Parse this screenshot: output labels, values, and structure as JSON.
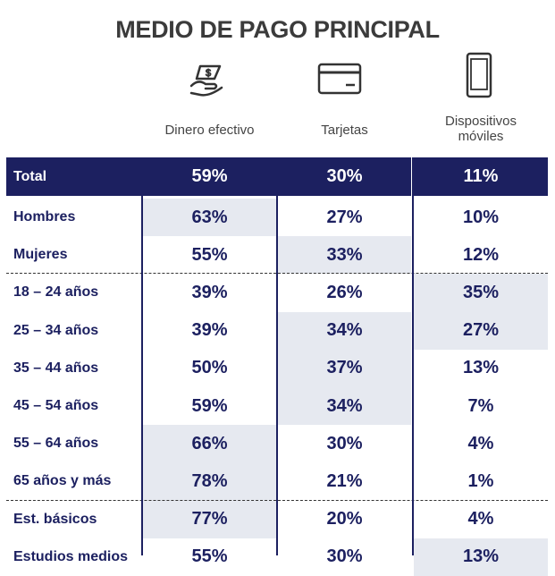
{
  "title": "MEDIO DE PAGO PRINCIPAL",
  "columns": [
    "Dinero efectivo",
    "Tarjetas",
    "Dispositivos móviles"
  ],
  "total": {
    "label": "Total",
    "values": [
      "59%",
      "30%",
      "11%"
    ]
  },
  "groups": [
    {
      "rows": [
        {
          "label": "Hombres",
          "values": [
            "63%",
            "27%",
            "10%"
          ],
          "highlight": [
            true,
            false,
            false
          ]
        },
        {
          "label": "Mujeres",
          "values": [
            "55%",
            "33%",
            "12%"
          ],
          "highlight": [
            false,
            true,
            false
          ]
        }
      ]
    },
    {
      "rows": [
        {
          "label": "18 – 24 años",
          "values": [
            "39%",
            "26%",
            "35%"
          ],
          "highlight": [
            false,
            false,
            true
          ]
        },
        {
          "label": "25 – 34 años",
          "values": [
            "39%",
            "34%",
            "27%"
          ],
          "highlight": [
            false,
            true,
            true
          ]
        },
        {
          "label": "35 – 44 años",
          "values": [
            "50%",
            "37%",
            "13%"
          ],
          "highlight": [
            false,
            true,
            false
          ]
        },
        {
          "label": "45 – 54 años",
          "values": [
            "59%",
            "34%",
            "7%"
          ],
          "highlight": [
            false,
            true,
            false
          ]
        },
        {
          "label": "55 – 64 años",
          "values": [
            "66%",
            "30%",
            "4%"
          ],
          "highlight": [
            true,
            false,
            false
          ]
        },
        {
          "label": "65 años y más",
          "values": [
            "78%",
            "21%",
            "1%"
          ],
          "highlight": [
            true,
            false,
            false
          ]
        }
      ]
    },
    {
      "rows": [
        {
          "label": "Est. básicos",
          "values": [
            "77%",
            "20%",
            "4%"
          ],
          "highlight": [
            true,
            false,
            false
          ]
        },
        {
          "label": "Estudios medios",
          "values": [
            "55%",
            "30%",
            "13%"
          ],
          "highlight": [
            false,
            false,
            true
          ]
        }
      ]
    }
  ]
}
